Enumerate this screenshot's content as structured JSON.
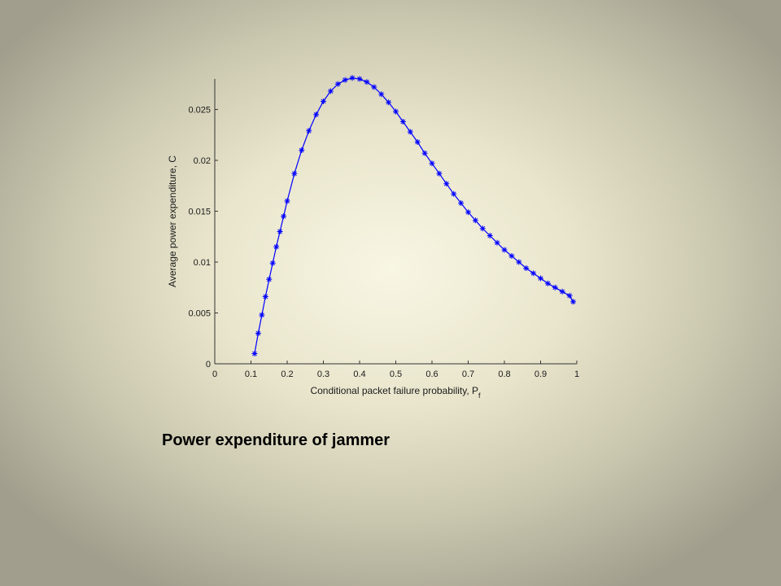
{
  "caption": "Power expenditure of jammer",
  "chart_data": {
    "type": "line",
    "title": "",
    "xlabel": "Conditional packet failure probability, P",
    "xlabel_subscript": "f",
    "ylabel": "Average power expenditure, C",
    "xlim": [
      0,
      1
    ],
    "ylim": [
      0,
      0.028
    ],
    "xticks": [
      0,
      0.1,
      0.2,
      0.3,
      0.4,
      0.5,
      0.6,
      0.7,
      0.8,
      0.9,
      1
    ],
    "xtick_labels": [
      "0",
      "0.1",
      "0.2",
      "0.3",
      "0.4",
      "0.5",
      "0.6",
      "0.7",
      "0.8",
      "0.9",
      "1"
    ],
    "yticks": [
      0,
      0.005,
      0.01,
      0.015,
      0.02,
      0.025
    ],
    "ytick_labels": [
      "0",
      "0.005",
      "0.01",
      "0.015",
      "0.02",
      "0.025"
    ],
    "grid": false,
    "line_color": "#0000ff",
    "marker": "asterisk",
    "series": [
      {
        "x": [
          0.11,
          0.12,
          0.13,
          0.14,
          0.15,
          0.16,
          0.17,
          0.18,
          0.19,
          0.2,
          0.22,
          0.24,
          0.26,
          0.28,
          0.3,
          0.32,
          0.34,
          0.36,
          0.38,
          0.4,
          0.42,
          0.44,
          0.46,
          0.48,
          0.5,
          0.52,
          0.54,
          0.56,
          0.58,
          0.6,
          0.62,
          0.64,
          0.66,
          0.68,
          0.7,
          0.72,
          0.74,
          0.76,
          0.78,
          0.8,
          0.82,
          0.84,
          0.86,
          0.88,
          0.9,
          0.92,
          0.94,
          0.96,
          0.98,
          0.99
        ],
        "y": [
          0.001,
          0.003,
          0.0048,
          0.0066,
          0.0083,
          0.0099,
          0.0115,
          0.013,
          0.0145,
          0.016,
          0.0187,
          0.021,
          0.0229,
          0.0245,
          0.0258,
          0.0268,
          0.0275,
          0.0279,
          0.0281,
          0.028,
          0.0277,
          0.0272,
          0.0265,
          0.0257,
          0.0248,
          0.0238,
          0.0228,
          0.0218,
          0.0207,
          0.0197,
          0.0187,
          0.0177,
          0.0167,
          0.0158,
          0.0149,
          0.0141,
          0.0133,
          0.0126,
          0.0119,
          0.0112,
          0.0106,
          0.01,
          0.0094,
          0.0089,
          0.0084,
          0.0079,
          0.0075,
          0.0071,
          0.0067,
          0.0061
        ]
      }
    ]
  }
}
